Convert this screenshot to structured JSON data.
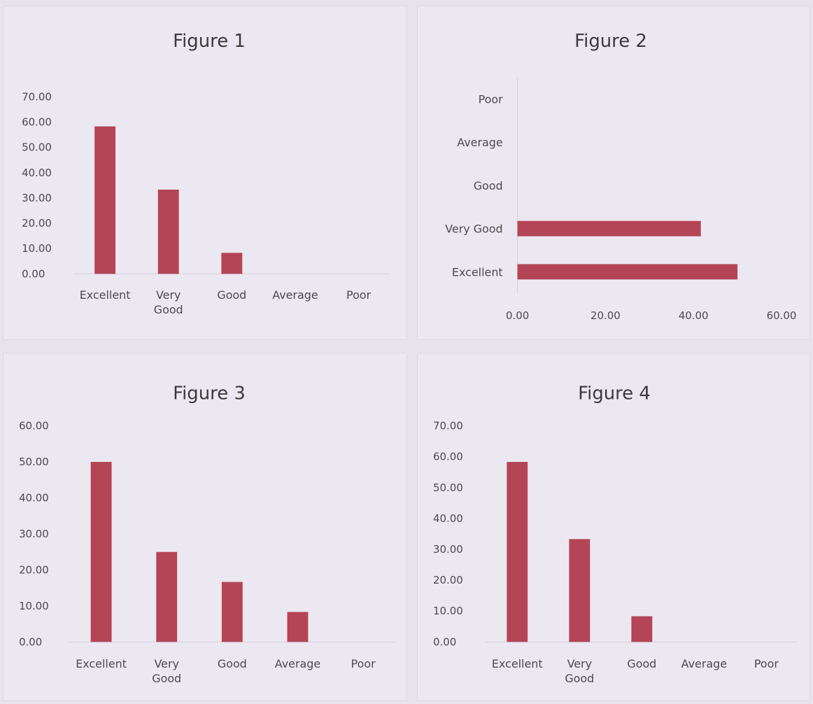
{
  "chart_data": [
    {
      "type": "bar",
      "orientation": "vertical",
      "title": "Figure 1",
      "categories": [
        "Excellent",
        "Very Good",
        "Good",
        "Average",
        "Poor"
      ],
      "values": [
        58.33,
        33.33,
        8.33,
        0,
        0
      ],
      "ylim": [
        0,
        70
      ],
      "yticks": [
        "0.00",
        "10.00",
        "20.00",
        "30.00",
        "40.00",
        "50.00",
        "60.00",
        "70.00"
      ],
      "grid": false,
      "color": "#b44557"
    },
    {
      "type": "bar",
      "orientation": "horizontal",
      "title": "Figure 2",
      "categories": [
        "Excellent",
        "Very Good",
        "Good",
        "Average",
        "Poor"
      ],
      "values": [
        50,
        41.67,
        0,
        0,
        0
      ],
      "xlim": [
        0,
        60
      ],
      "xticks": [
        "0.00",
        "20.00",
        "40.00",
        "60.00"
      ],
      "grid": false,
      "color": "#b44557"
    },
    {
      "type": "bar",
      "orientation": "vertical",
      "title": "Figure 3",
      "categories": [
        "Excellent",
        "Very Good",
        "Good",
        "Average",
        "Poor"
      ],
      "values": [
        50,
        25,
        16.67,
        8.33,
        0
      ],
      "ylim": [
        0,
        60
      ],
      "yticks": [
        "0.00",
        "10.00",
        "20.00",
        "30.00",
        "40.00",
        "50.00",
        "60.00"
      ],
      "grid": false,
      "color": "#b44557"
    },
    {
      "type": "bar",
      "orientation": "vertical",
      "title": "Figure 4",
      "categories": [
        "Excellent",
        "Very Good",
        "Good",
        "Average",
        "Poor"
      ],
      "values": [
        58.33,
        33.33,
        8.33,
        0,
        0
      ],
      "ylim": [
        0,
        70
      ],
      "yticks": [
        "0.00",
        "10.00",
        "20.00",
        "30.00",
        "40.00",
        "50.00",
        "60.00",
        "70.00"
      ],
      "grid": false,
      "color": "#b44557"
    }
  ]
}
